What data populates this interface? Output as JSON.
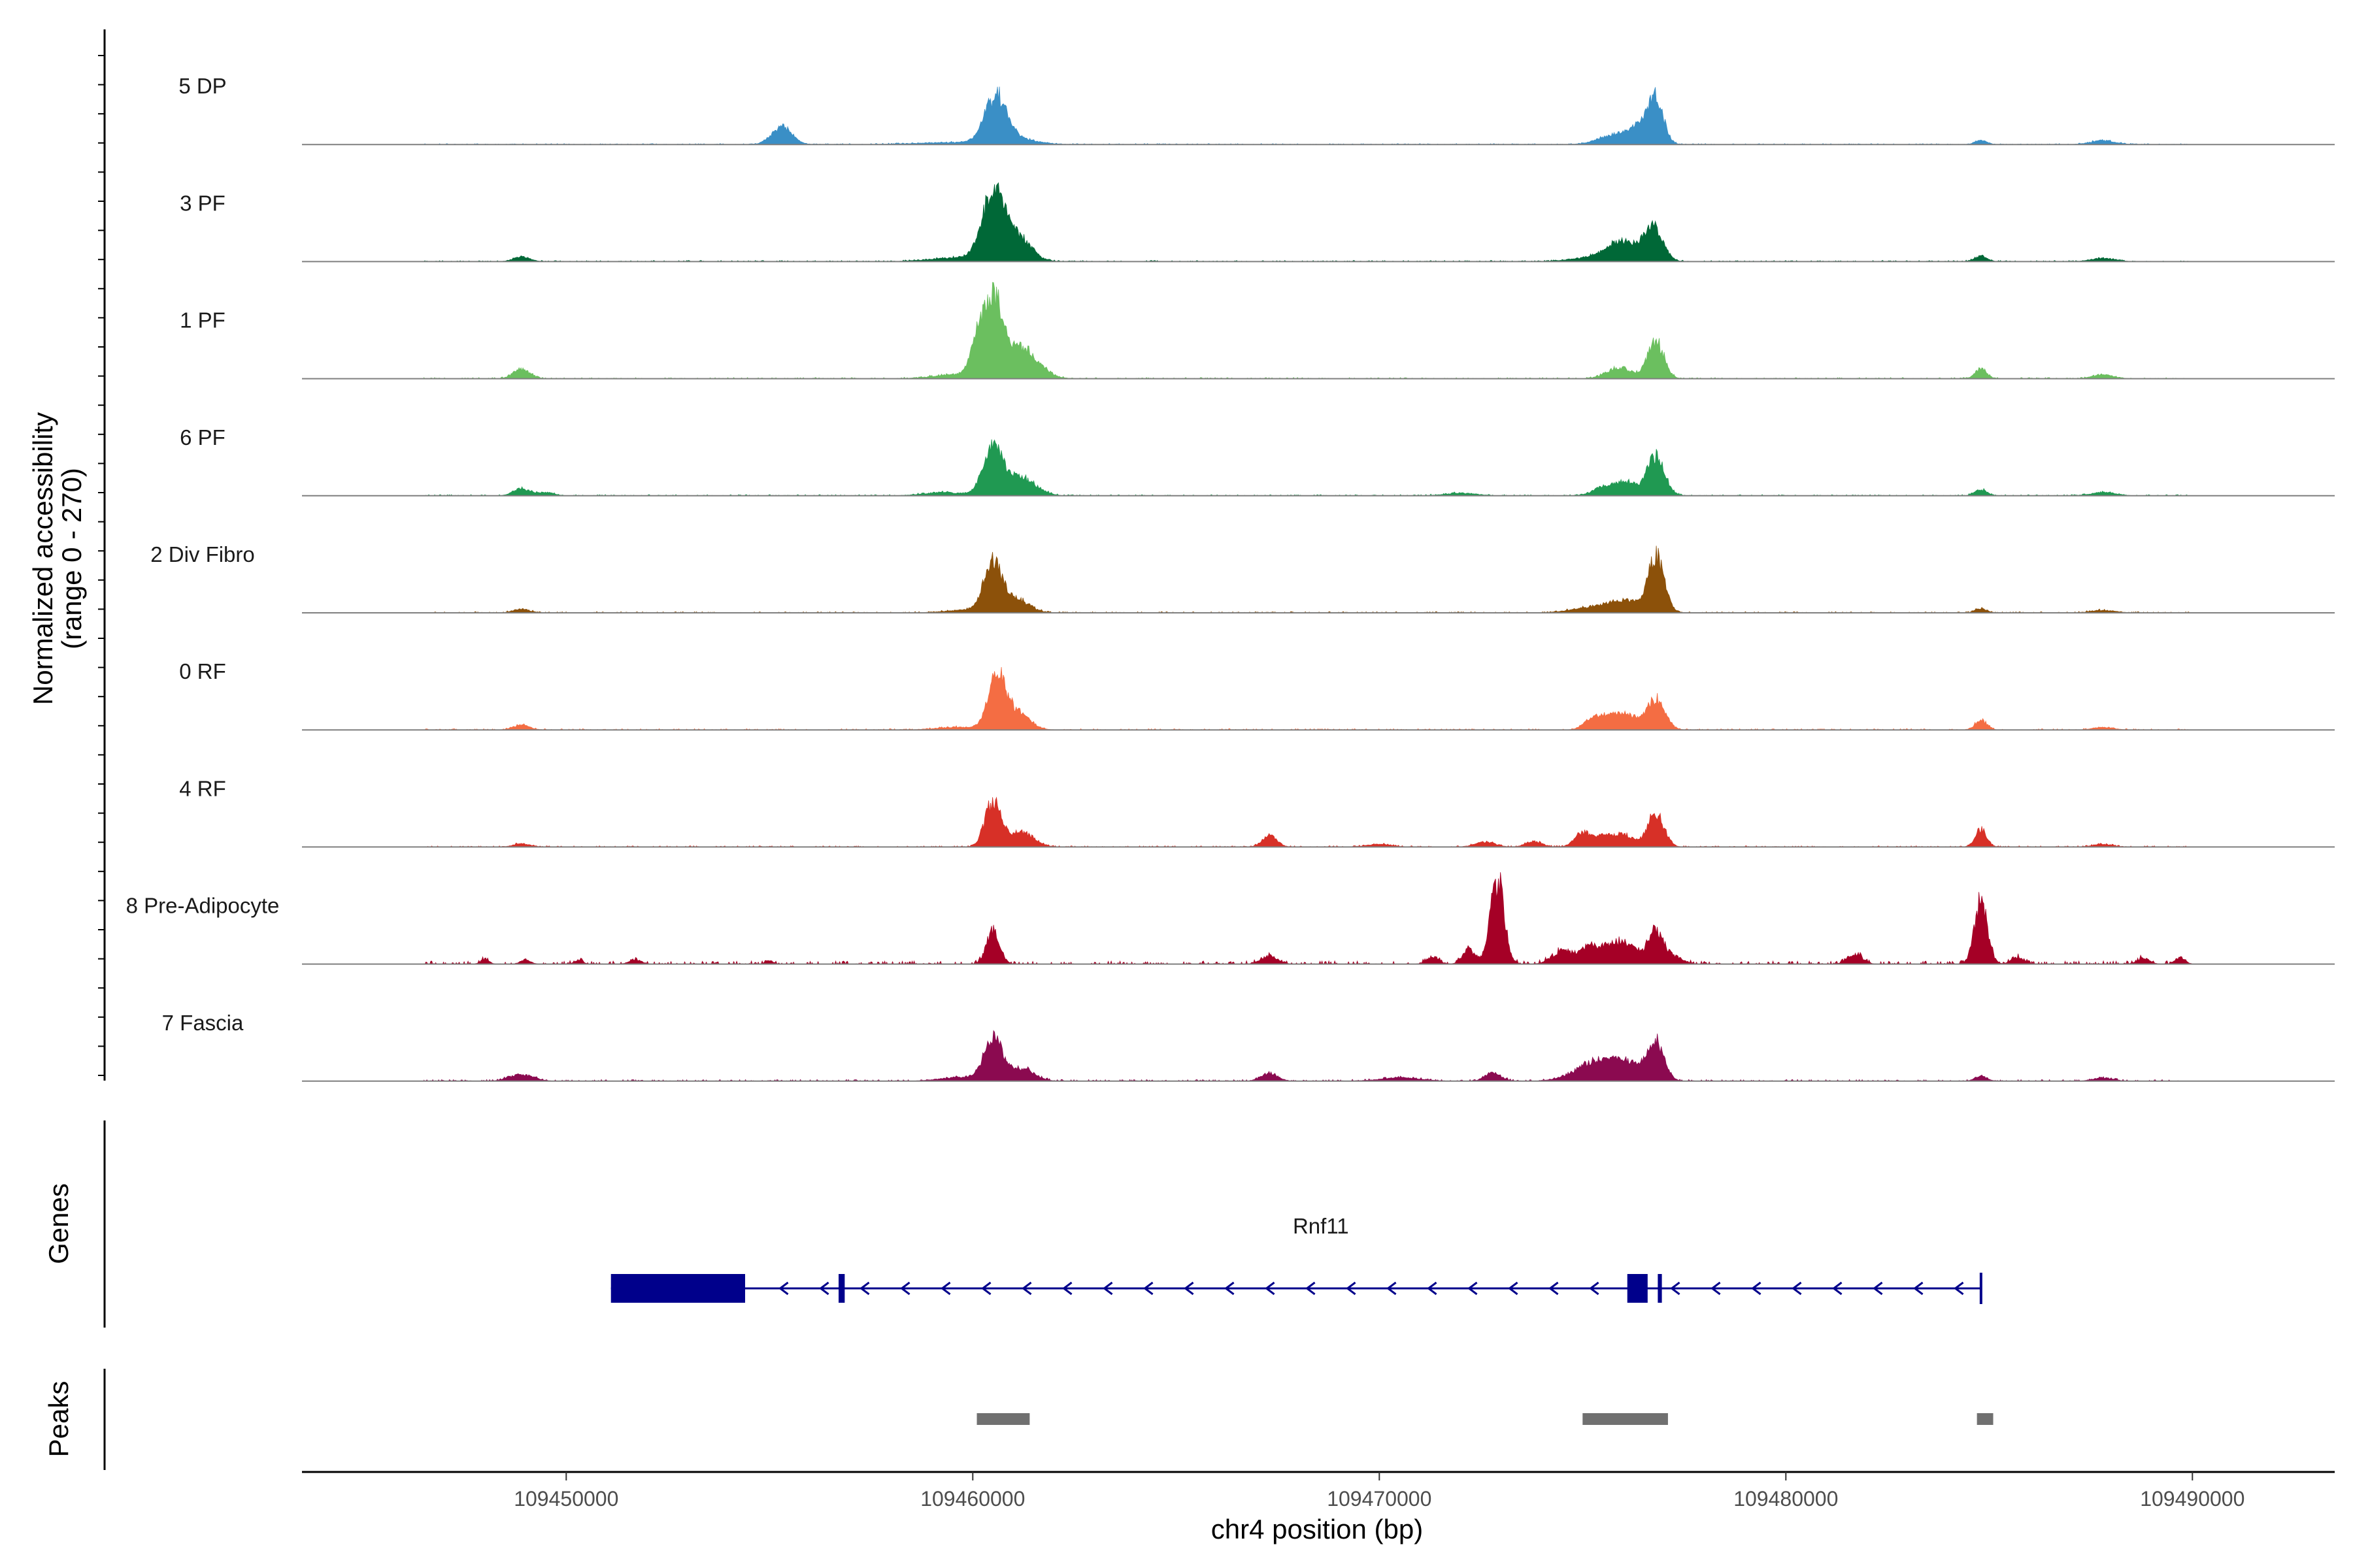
{
  "chart_data": {
    "type": "area",
    "title": "",
    "xlabel": "chr4 position (bp)",
    "ylabel": "Normalized accessibility\n(range 0 - 270)",
    "ylabel_lines": [
      "Normalized accessibility",
      "(range 0 - 270)"
    ],
    "xlim": [
      109443500,
      109493500
    ],
    "ylim": [
      0,
      270
    ],
    "x_ticks": [
      109450000,
      109460000,
      109470000,
      109480000,
      109490000
    ],
    "x_tick_labels": [
      "109450000",
      "109460000",
      "109470000",
      "109480000",
      "109490000"
    ],
    "baseline_extent": [
      109446500,
      109490000
    ],
    "series": [
      {
        "name": "5 DP",
        "color": "#3a8fc6",
        "noise": 2.5,
        "peaks": [
          [
            109455300,
            55,
            250
          ],
          [
            109459500,
            6,
            900
          ],
          [
            109460580,
            150,
            280
          ],
          [
            109461300,
            12,
            400
          ],
          [
            109475800,
            30,
            400
          ],
          [
            109476400,
            50,
            250
          ],
          [
            109476800,
            135,
            190
          ],
          [
            109484800,
            12,
            150
          ],
          [
            109487800,
            12,
            300
          ]
        ]
      },
      {
        "name": "3 PF",
        "color": "#006837",
        "noise": 3,
        "peaks": [
          [
            109448900,
            15,
            200
          ],
          [
            109460500,
            200,
            270
          ],
          [
            109461100,
            75,
            330
          ],
          [
            109459700,
            12,
            700
          ],
          [
            109476000,
            60,
            380
          ],
          [
            109476750,
            98,
            230
          ],
          [
            109475200,
            12,
            500
          ],
          [
            109484800,
            17,
            150
          ],
          [
            109487800,
            10,
            300
          ]
        ]
      },
      {
        "name": "1 PF",
        "color": "#6bbf5f",
        "noise": 3,
        "peaks": [
          [
            109448900,
            30,
            200
          ],
          [
            109460500,
            245,
            220
          ],
          [
            109461200,
            95,
            400
          ],
          [
            109460100,
            105,
            160
          ],
          [
            109459700,
            14,
            600
          ],
          [
            109475900,
            35,
            300
          ],
          [
            109476800,
            115,
            200
          ],
          [
            109484800,
            30,
            140
          ],
          [
            109487800,
            12,
            250
          ]
        ]
      },
      {
        "name": "6 PF",
        "color": "#209952",
        "noise": 3,
        "peaks": [
          [
            109448900,
            22,
            200
          ],
          [
            109449500,
            10,
            200
          ],
          [
            109460500,
            155,
            240
          ],
          [
            109461200,
            55,
            350
          ],
          [
            109459300,
            10,
            500
          ],
          [
            109475600,
            30,
            300
          ],
          [
            109476100,
            35,
            250
          ],
          [
            109476800,
            118,
            220
          ],
          [
            109484800,
            18,
            150
          ],
          [
            109487800,
            10,
            300
          ],
          [
            109472000,
            8,
            400
          ]
        ]
      },
      {
        "name": "2 Div Fibro",
        "color": "#8c510a",
        "noise": 3,
        "peaks": [
          [
            109448900,
            12,
            200
          ],
          [
            109460500,
            150,
            230
          ],
          [
            109461100,
            40,
            300
          ],
          [
            109459800,
            8,
            500
          ],
          [
            109475200,
            15,
            500
          ],
          [
            109476000,
            35,
            400
          ],
          [
            109476800,
            175,
            200
          ],
          [
            109484800,
            12,
            150
          ],
          [
            109487800,
            8,
            300
          ]
        ]
      },
      {
        "name": "0 RF",
        "color": "#f46d43",
        "noise": 3,
        "peaks": [
          [
            109448900,
            15,
            200
          ],
          [
            109460600,
            160,
            220
          ],
          [
            109461100,
            50,
            300
          ],
          [
            109459600,
            8,
            500
          ],
          [
            109475200,
            25,
            200
          ],
          [
            109475600,
            40,
            250
          ],
          [
            109476100,
            45,
            250
          ],
          [
            109476800,
            95,
            220
          ],
          [
            109484800,
            30,
            140
          ],
          [
            109487800,
            8,
            250
          ]
        ]
      },
      {
        "name": "4 RF",
        "color": "#d73027",
        "noise": 3,
        "peaks": [
          [
            109448900,
            10,
            200
          ],
          [
            109460500,
            140,
            200
          ],
          [
            109461200,
            45,
            300
          ],
          [
            109467300,
            35,
            180
          ],
          [
            109472600,
            15,
            250
          ],
          [
            109473800,
            18,
            200
          ],
          [
            109475000,
            45,
            200
          ],
          [
            109475500,
            30,
            200
          ],
          [
            109476000,
            40,
            250
          ],
          [
            109476800,
            105,
            200
          ],
          [
            109484800,
            55,
            140
          ],
          [
            109487800,
            8,
            250
          ],
          [
            109470000,
            8,
            300
          ]
        ]
      },
      {
        "name": "8 Pre-Adipocyte",
        "color": "#a50026",
        "noise": 8,
        "peaks": [
          [
            109446000,
            12,
            100
          ],
          [
            109448000,
            15,
            100
          ],
          [
            109449000,
            14,
            120
          ],
          [
            109450300,
            12,
            100
          ],
          [
            109451700,
            14,
            150
          ],
          [
            109455000,
            10,
            100
          ],
          [
            109460500,
            105,
            160
          ],
          [
            109467300,
            25,
            200
          ],
          [
            109471300,
            20,
            150
          ],
          [
            109472200,
            45,
            150
          ],
          [
            109472900,
            260,
            170
          ],
          [
            109474500,
            40,
            250
          ],
          [
            109475200,
            55,
            250
          ],
          [
            109475800,
            60,
            250
          ],
          [
            109476200,
            40,
            200
          ],
          [
            109476800,
            105,
            200
          ],
          [
            109477300,
            20,
            200
          ],
          [
            109481700,
            30,
            180
          ],
          [
            109484800,
            195,
            160
          ],
          [
            109485700,
            20,
            150
          ],
          [
            109488800,
            18,
            150
          ],
          [
            109489700,
            20,
            120
          ]
        ]
      },
      {
        "name": "7 Fascia",
        "color": "#8b0a50",
        "noise": 4,
        "peaks": [
          [
            109448900,
            20,
            300
          ],
          [
            109460500,
            135,
            220
          ],
          [
            109461200,
            40,
            300
          ],
          [
            109459700,
            12,
            500
          ],
          [
            109467300,
            25,
            200
          ],
          [
            109472800,
            25,
            200
          ],
          [
            109475300,
            55,
            500
          ],
          [
            109476100,
            50,
            450
          ],
          [
            109476800,
            110,
            200
          ],
          [
            109484800,
            15,
            150
          ],
          [
            109487800,
            10,
            250
          ],
          [
            109470500,
            10,
            500
          ]
        ]
      }
    ],
    "gene": {
      "name": "Rnf11",
      "strand": "-",
      "start": 109451100,
      "end": 109484800,
      "color": "#00008b",
      "exons": [
        [
          109451100,
          109454400
        ],
        [
          109456700,
          109456850
        ],
        [
          109476100,
          109476600
        ],
        [
          109476850,
          109476950
        ]
      ],
      "tss_tick": 109484800
    },
    "peaks_track": {
      "label": "Peaks",
      "color": "#707070",
      "regions": [
        [
          109460100,
          109461400
        ],
        [
          109475000,
          109477100
        ],
        [
          109484700,
          109485100
        ]
      ]
    },
    "gene_track_label": "Genes"
  }
}
